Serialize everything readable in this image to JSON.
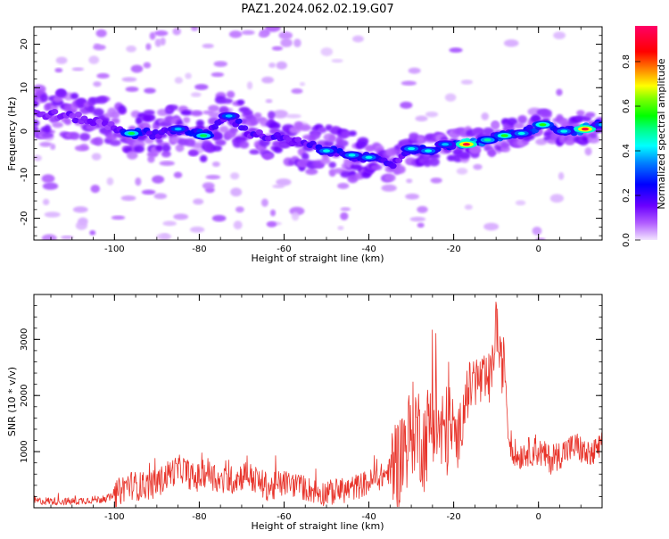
{
  "figure": {
    "title": "PAZ1.2024.062.02.19.G07"
  },
  "chart_data": [
    {
      "type": "heatmap",
      "xlabel": "Height of straight line (km)",
      "ylabel": "Frequency (Hz)",
      "xlim": [
        -119,
        15
      ],
      "ylim": [
        -25,
        24
      ],
      "xticks": [
        -100,
        -80,
        -60,
        -40,
        -20,
        0
      ],
      "yticks": [
        -20,
        -10,
        0,
        10,
        20
      ],
      "grid": false,
      "ridge": [
        {
          "x": -116,
          "y": 4,
          "v": 0.3
        },
        {
          "x": -108,
          "y": 3,
          "v": 0.3
        },
        {
          "x": -100,
          "y": 1,
          "v": 0.25
        },
        {
          "x": -96,
          "y": -0.5,
          "v": 0.55
        },
        {
          "x": -90,
          "y": -0.5,
          "v": 0.35
        },
        {
          "x": -85,
          "y": 0.5,
          "v": 0.4
        },
        {
          "x": -79,
          "y": -1,
          "v": 0.55
        },
        {
          "x": -73,
          "y": 3.5,
          "v": 0.4
        },
        {
          "x": -68,
          "y": -0.5,
          "v": 0.35
        },
        {
          "x": -62,
          "y": -1.5,
          "v": 0.35
        },
        {
          "x": -55,
          "y": -3,
          "v": 0.35
        },
        {
          "x": -50,
          "y": -4.5,
          "v": 0.45
        },
        {
          "x": -44,
          "y": -5.5,
          "v": 0.45
        },
        {
          "x": -40,
          "y": -6,
          "v": 0.45
        },
        {
          "x": -35,
          "y": -8,
          "v": 0.35
        },
        {
          "x": -30,
          "y": -4,
          "v": 0.45
        },
        {
          "x": -26,
          "y": -4.5,
          "v": 0.45
        },
        {
          "x": -22,
          "y": -3,
          "v": 0.4
        },
        {
          "x": -17,
          "y": -3,
          "v": 0.95
        },
        {
          "x": -12,
          "y": -2,
          "v": 0.5
        },
        {
          "x": -8,
          "y": -1,
          "v": 0.6
        },
        {
          "x": -4,
          "y": -0.5,
          "v": 0.45
        },
        {
          "x": 1,
          "y": 1.5,
          "v": 0.6
        },
        {
          "x": 6,
          "y": 0,
          "v": 0.45
        },
        {
          "x": 11,
          "y": 0.5,
          "v": 0.95
        },
        {
          "x": 15,
          "y": 1.5,
          "v": 0.4
        }
      ]
    },
    {
      "type": "line",
      "xlabel": "Height of straight line (km)",
      "ylabel": "SNR (10 * v/v)",
      "xlim": [
        -119,
        15
      ],
      "ylim": [
        0,
        3800
      ],
      "xticks": [
        -100,
        -80,
        -60,
        -40,
        -20,
        0
      ],
      "yticks": [
        1000,
        2000,
        3000
      ],
      "grid": false,
      "series": [
        {
          "color": "#e8332a",
          "x": [
            -119,
            -115,
            -110,
            -106,
            -103,
            -100,
            -97,
            -94,
            -90,
            -87,
            -84,
            -81,
            -78,
            -75,
            -72,
            -69,
            -66,
            -63,
            -60,
            -57,
            -54,
            -51,
            -48,
            -45,
            -42,
            -39,
            -36,
            -33,
            -31,
            -29,
            -27,
            -25,
            -23,
            -21,
            -19,
            -17,
            -15,
            -13,
            -11,
            -10,
            -9,
            -8,
            -7,
            -5,
            -3,
            0,
            3,
            6,
            9,
            12,
            15
          ],
          "y": [
            120,
            120,
            110,
            140,
            150,
            200,
            420,
            380,
            420,
            620,
            700,
            500,
            650,
            450,
            500,
            600,
            450,
            350,
            450,
            400,
            320,
            260,
            280,
            320,
            400,
            480,
            600,
            800,
            1200,
            1500,
            1100,
            1700,
            1300,
            1400,
            1200,
            2000,
            2300,
            2200,
            2300,
            3400,
            2500,
            2600,
            1200,
            900,
            1000,
            1000,
            850,
            1000,
            1100,
            900,
            1100
          ]
        }
      ],
      "noise": [
        {
          "from": -119,
          "to": -100,
          "amp": 70
        },
        {
          "from": -100,
          "to": -60,
          "amp": 260
        },
        {
          "from": -60,
          "to": -35,
          "amp": 230
        },
        {
          "from": -35,
          "to": -20,
          "amp": 850
        },
        {
          "from": -20,
          "to": -8,
          "amp": 500
        },
        {
          "from": -8,
          "to": 15,
          "amp": 260
        }
      ]
    }
  ],
  "colorbar": {
    "label": "Normalized spectral amplitude",
    "ticks": [
      0.0,
      0.2,
      0.4,
      0.6,
      0.8
    ],
    "range": [
      0,
      0.96
    ]
  }
}
